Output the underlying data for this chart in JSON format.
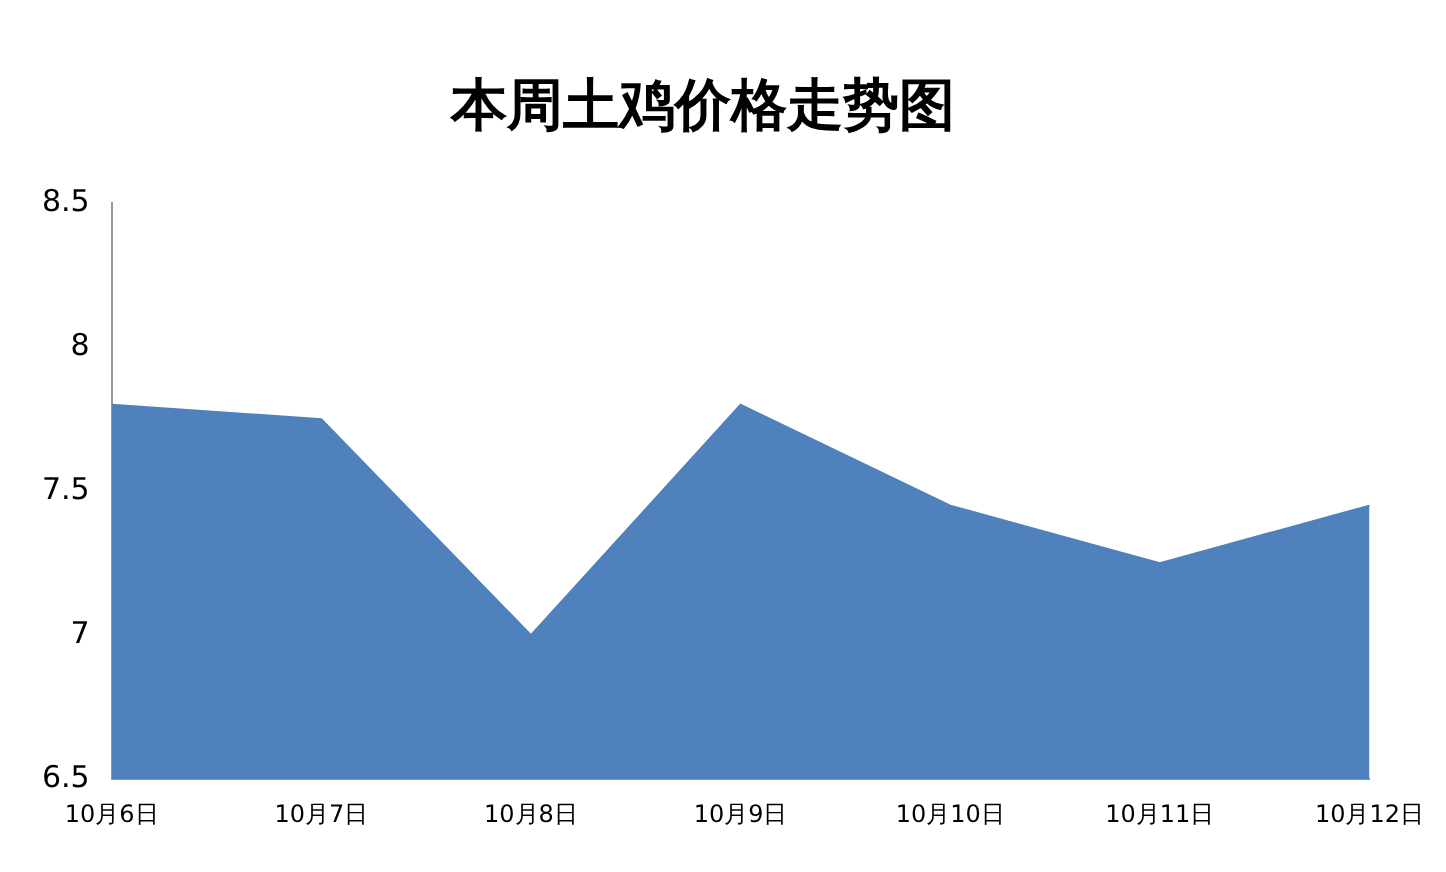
{
  "chart_data": {
    "type": "area",
    "title": "本周土鸡价格走势图",
    "categories": [
      "10月6日",
      "10月7日",
      "10月8日",
      "10月9日",
      "10月10日",
      "10月11日",
      "10月12日"
    ],
    "series": [
      {
        "color": "#4f81bd",
        "values": [
          7.8,
          7.75,
          7.0,
          7.8,
          7.45,
          7.25,
          7.45
        ]
      }
    ],
    "ylim": [
      6.5,
      8.5
    ],
    "yticks": [
      6.5,
      7,
      7.5,
      8,
      8.5
    ],
    "grid": false,
    "legend": false
  }
}
